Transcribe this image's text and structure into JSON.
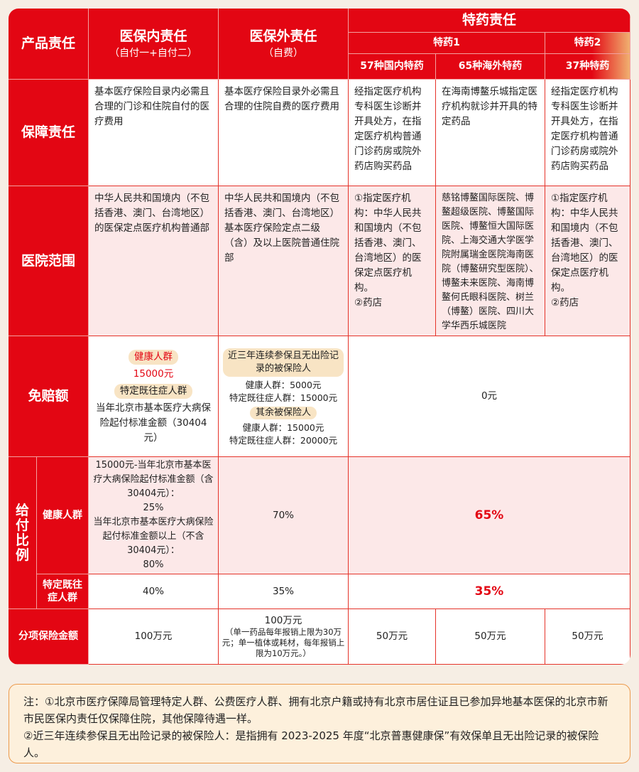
{
  "header": {
    "product": "产品责任",
    "inner": {
      "title": "医保内责任",
      "sub": "（自付一+自付二）"
    },
    "outer": {
      "title": "医保外责任",
      "sub": "（自费）"
    },
    "special": "特药责任",
    "special1": "特药1",
    "special2": "特药2",
    "cols": [
      "57种国内特药",
      "65种海外特药",
      "37种特药"
    ]
  },
  "rows": {
    "coverage": {
      "label": "保障责任",
      "cells": [
        "基本医疗保险目录内必需且合理的门诊和住院自付的医疗费用",
        "基本医疗保险目录外必需且合理的住院自费的医疗费用",
        "经指定医疗机构专科医生诊断并开具处方，在指定医疗机构普通门诊药房或院外药店购买药品",
        "在海南博鳌乐城指定医疗机构就诊并开具的特定药品",
        "经指定医疗机构专科医生诊断并开具处方，在指定医疗机构普通门诊药房或院外药店购买药品"
      ]
    },
    "hospital": {
      "label": "医院范围",
      "cells": [
        "中华人民共和国境内（不包括香港、澳门、台湾地区）的医保定点医疗机构普通部",
        "中华人民共和国境内（不包括香港、澳门、台湾地区）基本医疗保险定点二级（含）及以上医院普通住院部",
        "①指定医疗机构：中华人民共和国境内（不包括香港、澳门、台湾地区）的医保定点医疗机构。\n②药店",
        "慈铭博鳌国际医院、博鳌超级医院、博鳌国际医院、博鳌恒大国际医院、上海交通大学医学院附属瑞金医院海南医院（博鳌研究型医院）、博鳌未来医院、海南博鳌何氏眼科医院、树兰（博鳌）医院、四川大学华西乐城医院",
        "①指定医疗机构：中华人民共和国境内（不包括香港、澳门、台湾地区）的医保定点医疗机构。\n②药店"
      ]
    },
    "deductible": {
      "label": "免赔额",
      "inner": {
        "healthy_label": "健康人群",
        "healthy_value": "15000元",
        "pre_label": "特定既往症人群",
        "pre_value": "当年北京市基本医疗大病保险起付标准金额（30404元）"
      },
      "outer": {
        "group1": "近三年连续参保且无出险记录的被保险人",
        "g1_healthy": "健康人群：5000元",
        "g1_pre": "特定既往症人群：15000元",
        "group2": "其余被保险人",
        "g2_healthy": "健康人群：15000元",
        "g2_pre": "特定既往症人群：20000元"
      },
      "special": "0元"
    },
    "ratio": {
      "label": "给付比例",
      "healthy": {
        "label": "健康人群",
        "inner": "15000元-当年北京市基本医疗大病保险起付标准金额（含30404元）：\n25%\n当年北京市基本医疗大病保险起付标准金额以上（不含30404元）：\n80%",
        "outer": "70%",
        "special": "65%"
      },
      "pre": {
        "label": "特定既往症人群",
        "inner": "40%",
        "outer": "35%",
        "special": "35%"
      }
    },
    "amount": {
      "label": "分项保险金额",
      "inner": "100万元",
      "outer": "100万元",
      "outer_note": "（单一药品每年报销上限为30万元；单一植体或耗材，每年报销上限为10万元。）",
      "special": [
        "50万元",
        "50万元",
        "50万元"
      ]
    }
  },
  "notes": [
    "注：①北京市医疗保障局管理特定人群、公费医疗人群、拥有北京户籍或持有北京市居住证且已参加异地基本医保的北京市新市民医保内责任仅保障住院，其他保障待遇一样。",
    "②近三年连续参保且无出险记录的被保险人：是指拥有 2023-2025 年度“北京普惠健康保”有效保单且无出险记录的被保险人。"
  ],
  "colors": {
    "brand_red": "#e30613",
    "pink_row": "#fce8e8",
    "note_bg": "#fdf0dc"
  }
}
